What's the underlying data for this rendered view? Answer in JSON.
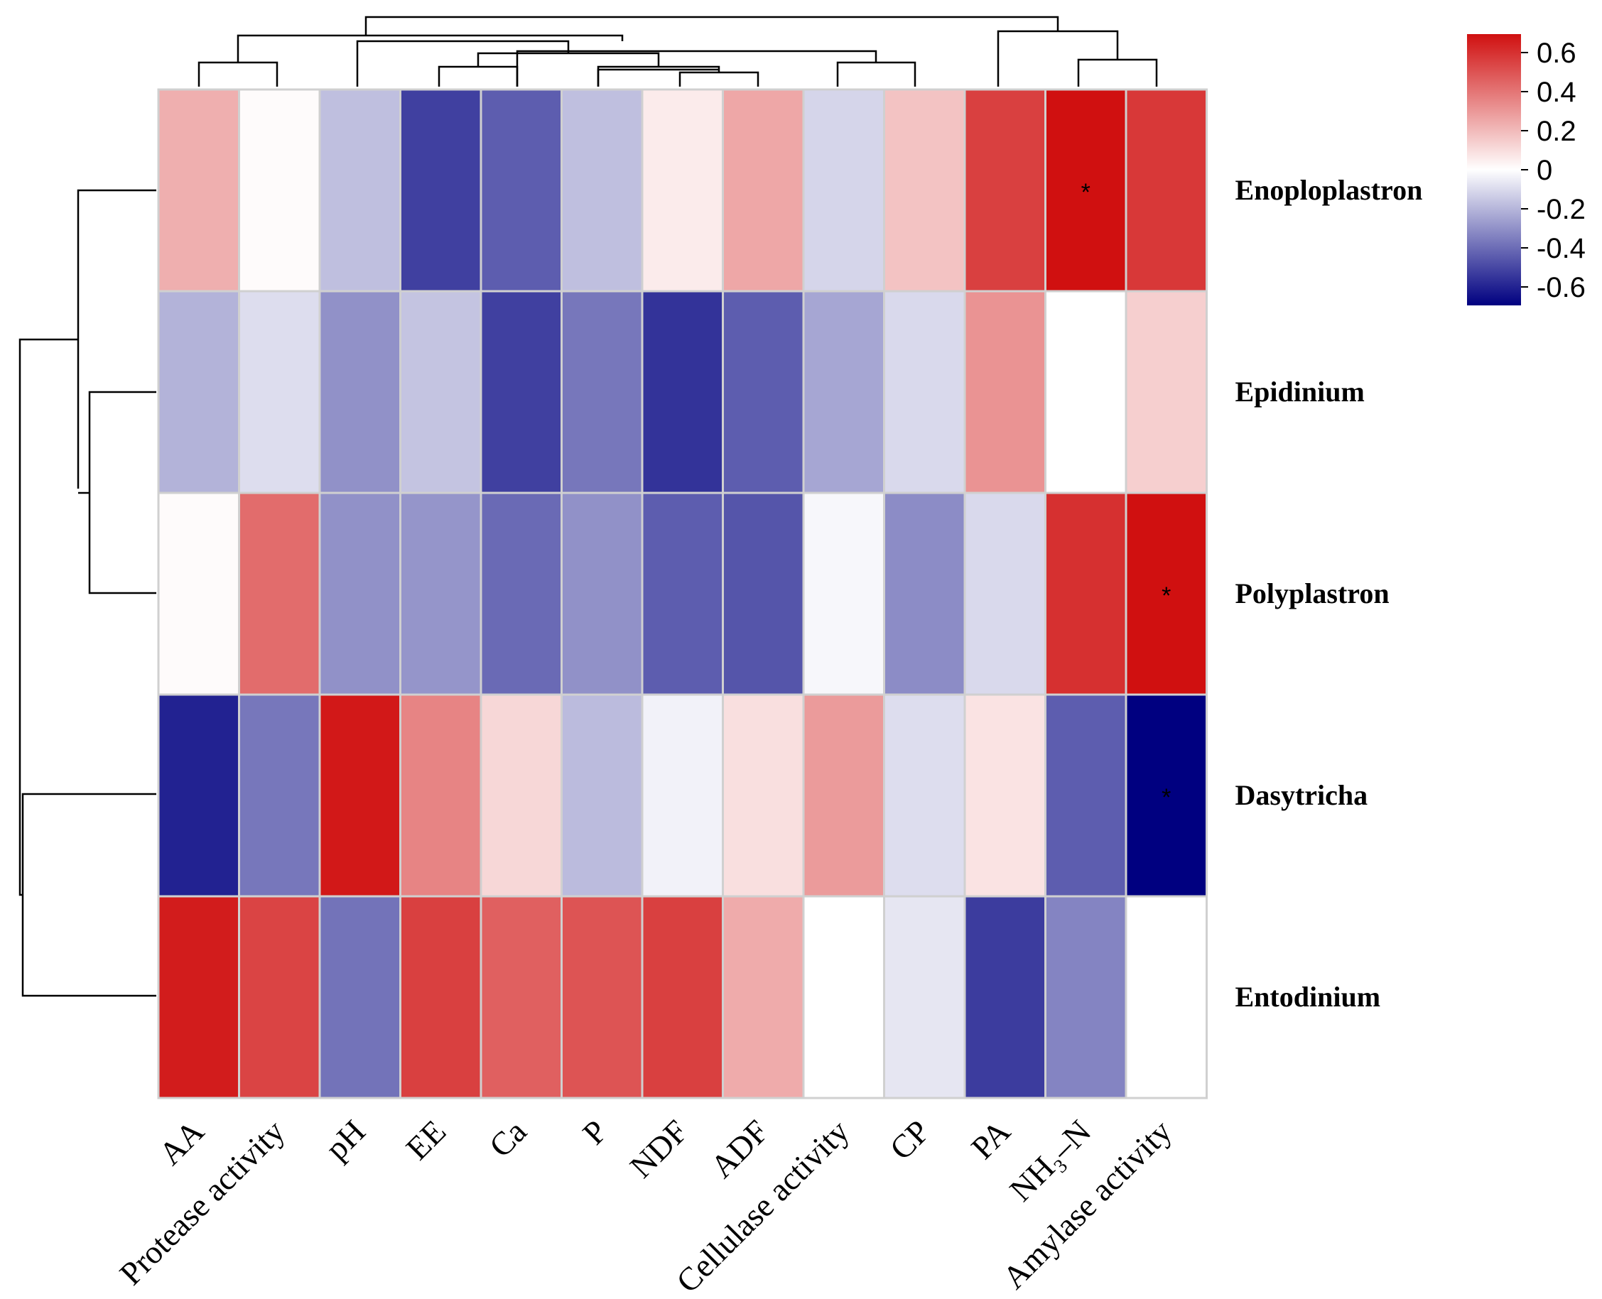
{
  "chart_data": {
    "type": "heatmap",
    "title": "",
    "columns": [
      "AA",
      "Protease activity",
      "pH",
      "EE",
      "Ca",
      "P",
      "NDF",
      "ADF",
      "Cellulase activity",
      "CP",
      "PA",
      "NH₃–N",
      "Amylase activity"
    ],
    "rows": [
      "Enoploplastron",
      "Epidinium",
      "Polyplastron",
      "Dasytricha",
      "Entodinium"
    ],
    "values": [
      [
        0.2,
        0.01,
        -0.15,
        -0.45,
        -0.38,
        -0.15,
        0.05,
        0.22,
        -0.1,
        0.15,
        0.48,
        0.6,
        0.5
      ],
      [
        -0.18,
        -0.08,
        -0.26,
        -0.14,
        -0.45,
        -0.32,
        -0.48,
        -0.38,
        -0.21,
        -0.09,
        0.27,
        0.0,
        0.12
      ],
      [
        0.01,
        0.37,
        -0.26,
        -0.25,
        -0.35,
        -0.26,
        -0.38,
        -0.4,
        -0.02,
        -0.27,
        -0.09,
        0.52,
        0.66
      ],
      [
        -0.52,
        -0.32,
        0.58,
        0.31,
        0.1,
        -0.16,
        -0.03,
        0.08,
        0.25,
        -0.08,
        0.07,
        -0.38,
        -0.6
      ],
      [
        0.57,
        0.47,
        -0.33,
        0.48,
        0.4,
        0.43,
        0.48,
        0.21,
        0.0,
        -0.06,
        -0.46,
        -0.29,
        0.0
      ]
    ],
    "significance": [
      [
        "",
        "",
        "",
        "",
        "",
        "",
        "",
        "",
        "",
        "",
        "",
        "*",
        ""
      ],
      [
        "",
        "",
        "",
        "",
        "",
        "",
        "",
        "",
        "",
        "",
        "",
        "",
        ""
      ],
      [
        "",
        "",
        "",
        "",
        "",
        "",
        "",
        "",
        "",
        "",
        "",
        "",
        "*"
      ],
      [
        "",
        "",
        "",
        "",
        "",
        "",
        "",
        "",
        "",
        "",
        "",
        "",
        "*"
      ],
      [
        "",
        "",
        "",
        "",
        "",
        "",
        "",
        "",
        "",
        "",
        "",
        "",
        ""
      ]
    ],
    "color_range": [
      -0.6,
      0.6
    ],
    "color_stops": {
      "low": "#000080",
      "mid": "#ffffff",
      "high": "#d01010"
    },
    "colorbar_ticks": [
      "0.6",
      "0.4",
      "0.2",
      "0",
      "-0.2",
      "-0.4",
      "-0.6"
    ],
    "legend_position": "top-right",
    "xlabel": "",
    "ylabel": "",
    "column_dendrogram": true,
    "row_dendrogram": true
  }
}
